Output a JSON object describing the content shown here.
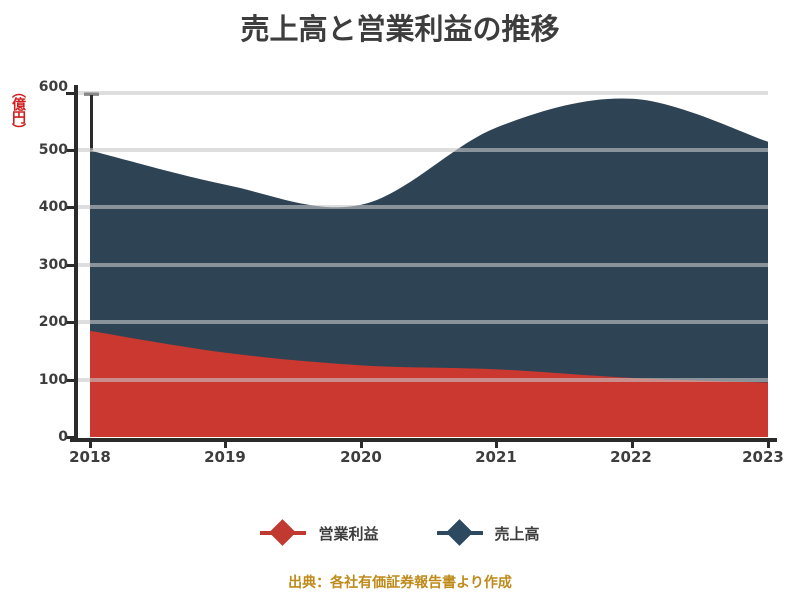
{
  "title": "売上高と営業利益の推移",
  "y_axis": {
    "unit_label": "（億円）",
    "unit_label_color": "#d01f1f",
    "ticks": [
      "0",
      "100",
      "200",
      "300",
      "400",
      "500",
      "600"
    ]
  },
  "x_axis": {
    "labels": [
      "2018",
      "2019",
      "2020",
      "2021",
      "2022",
      "2023"
    ]
  },
  "legend": {
    "items": [
      {
        "label": "営業利益",
        "marker": "diamond",
        "color": "#c13a32"
      },
      {
        "label": "売上高",
        "marker": "diamond",
        "color": "#2d4960"
      }
    ]
  },
  "source_note": "出典：各社有価証券報告書より作成",
  "colors": {
    "area_red": "#ca3830",
    "area_blue": "#2e4454",
    "axis": "#2b2b2b",
    "gridline": "#c8c8c8",
    "title_text": "#3d3d3d",
    "source_text": "#bf8a1a"
  },
  "chart_data": {
    "type": "area",
    "stacked": true,
    "smooth": true,
    "x": [
      2018,
      2019,
      2020,
      2021,
      2022,
      2023
    ],
    "series": [
      {
        "name": "営業利益",
        "color": "#ca3830",
        "values": [
          185,
          147,
          125,
          118,
          103,
          95
        ]
      },
      {
        "name": "売上高",
        "color": "#2e4454",
        "values": [
          315,
          293,
          280,
          422,
          487,
          420
        ]
      }
    ],
    "stacked_totals": [
      500,
      440,
      405,
      540,
      590,
      515
    ],
    "ylim": [
      0,
      600
    ],
    "ytick_step": 100,
    "grid": true,
    "legend_position": "bottom",
    "annotations": [
      {
        "type": "whisker",
        "at_x_index": 0,
        "from": 500,
        "to": 600,
        "color": "#2a2a2a"
      }
    ]
  }
}
